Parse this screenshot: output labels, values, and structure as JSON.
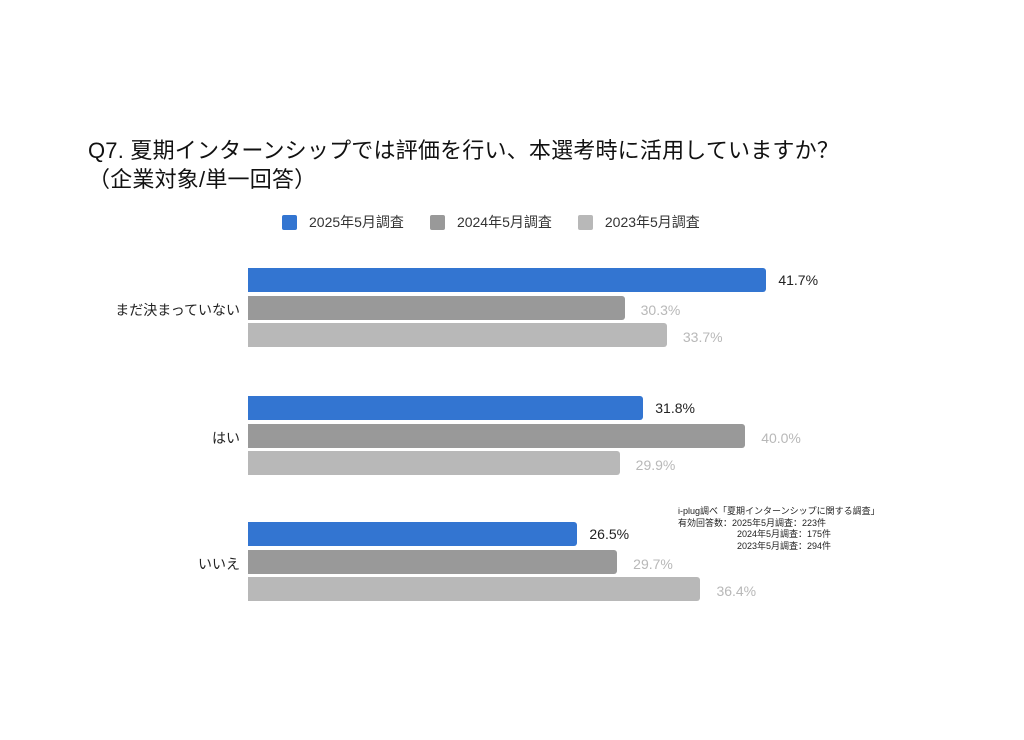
{
  "title": {
    "line1": "Q7. 夏期インターンシップでは評価を行い、本選考時に活用していますか？",
    "line2": "（企業対象/単一回答）"
  },
  "legend": [
    {
      "label": "2025年5月調査",
      "color": "#3375d1"
    },
    {
      "label": "2024年5月調査",
      "color": "#999999"
    },
    {
      "label": "2023年5月調査",
      "color": "#b8b8b8"
    }
  ],
  "categories": [
    {
      "label": "まだ決まっていない",
      "values": [
        "41.7%",
        "30.3%",
        "33.7%"
      ]
    },
    {
      "label": "はい",
      "values": [
        "31.8%",
        "40.0%",
        "29.9%"
      ]
    },
    {
      "label": "いいえ",
      "values": [
        "26.5%",
        "29.7%",
        "36.4%"
      ]
    }
  ],
  "note": {
    "line1": "i-plug調べ「夏期インターンシップに関する調査」",
    "line2": "有効回答数：2025年5月調査：223件",
    "line3": "2024年5月調査：175件",
    "line4": "2023年5月調査：294件"
  },
  "chart_data": {
    "type": "bar",
    "orientation": "horizontal",
    "title": "Q7. 夏期インターンシップでは評価を行い、本選考時に活用していますか？（企業対象/単一回答）",
    "categories": [
      "まだ決まっていない",
      "はい",
      "いいえ"
    ],
    "series": [
      {
        "name": "2025年5月調査",
        "color": "#3375d1",
        "values": [
          41.7,
          31.8,
          26.5
        ]
      },
      {
        "name": "2024年5月調査",
        "color": "#999999",
        "values": [
          30.3,
          40.0,
          29.7
        ]
      },
      {
        "name": "2023年5月調査",
        "color": "#b8b8b8",
        "values": [
          33.7,
          29.9,
          36.4
        ]
      }
    ],
    "unit": "%",
    "xlabel": "",
    "ylabel": "",
    "grid": false,
    "legend_position": "top",
    "annotations": [
      "i-plug調べ「夏期インターンシップに関する調査」",
      "有効回答数：2025年5月調査：223件 / 2024年5月調査：175件 / 2023年5月調査：294件"
    ]
  }
}
